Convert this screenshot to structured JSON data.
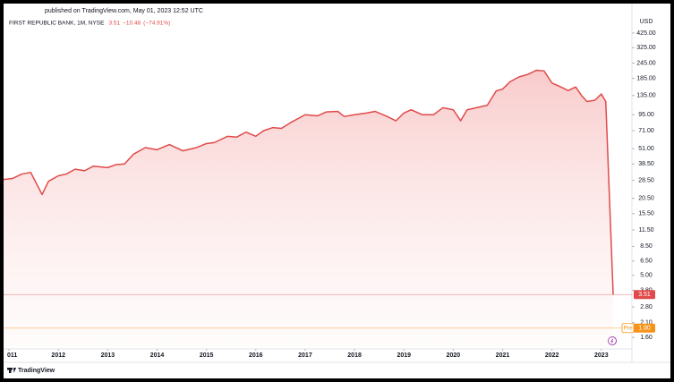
{
  "chart_data": {
    "type": "line",
    "header": "published on TradingView.com, May 01, 2023 12:52 UTC",
    "currency": "USD",
    "legend": {
      "change": "−10.48",
      "change_pct": "(−74.91%)"
    },
    "last_label": "3.51",
    "pre": {
      "name": "Pre",
      "value": 1.9,
      "label": "1.90",
      "color": "#f7931a"
    },
    "brand": "TradingView",
    "ylog": true,
    "grid": false,
    "series": [
      {
        "name": "FIRST REPUBLIC BANK, 1M, NYSE",
        "color": "#e04a4a",
        "values": [
          29,
          29.5,
          32,
          33,
          24,
          22,
          28,
          31,
          32,
          35,
          34,
          37,
          36,
          38,
          38.5,
          46,
          52,
          50,
          55,
          51,
          49,
          52,
          56,
          57,
          64,
          63,
          69,
          64,
          71,
          75,
          74,
          82,
          95,
          93,
          100,
          101,
          92,
          95,
          98,
          101,
          92,
          85,
          98,
          104,
          95,
          95,
          108,
          104,
          85,
          104,
          109,
          113,
          147,
          152,
          174,
          190,
          199,
          215,
          212,
          170,
          160,
          148,
          158,
          135,
          121,
          124,
          139,
          121,
          3.51
        ]
      }
    ],
    "x": [
      2010.89,
      2011.07,
      2011.26,
      2011.44,
      2011.62,
      2011.67,
      2011.8,
      2012.0,
      2012.16,
      2012.34,
      2012.53,
      2012.71,
      2013.0,
      2013.16,
      2013.34,
      2013.52,
      2013.76,
      2014.0,
      2014.25,
      2014.43,
      2014.52,
      2014.8,
      2015.0,
      2015.16,
      2015.43,
      2015.61,
      2015.8,
      2016.0,
      2016.16,
      2016.34,
      2016.52,
      2016.7,
      2017.0,
      2017.25,
      2017.43,
      2017.66,
      2017.79,
      2018.0,
      2018.24,
      2018.42,
      2018.66,
      2018.84,
      2019.0,
      2019.15,
      2019.37,
      2019.6,
      2019.79,
      2020.0,
      2020.15,
      2020.28,
      2020.51,
      2020.69,
      2020.87,
      2021.0,
      2021.15,
      2021.33,
      2021.51,
      2021.69,
      2021.84,
      2022.0,
      2022.15,
      2022.33,
      2022.48,
      2022.6,
      2022.71,
      2022.87,
      2023.0,
      2023.09,
      2023.24
    ],
    "xlim": [
      2010.89,
      2023.62
    ],
    "xticks": [
      {
        "value": 2011,
        "label": "011"
      },
      2012,
      2013,
      2014,
      2015,
      2016,
      2017,
      2018,
      2019,
      2020,
      2021,
      2022,
      2023
    ],
    "ylim": [
      1.34,
      476
    ],
    "yticks": [
      {
        "value": 425,
        "label": "425.00"
      },
      {
        "value": 325,
        "label": "325.00"
      },
      {
        "value": 245,
        "label": "245.00"
      },
      {
        "value": 185,
        "label": "185.00"
      },
      {
        "value": 135,
        "label": "135.00"
      },
      {
        "value": 95,
        "label": "95.00"
      },
      {
        "value": 71,
        "label": "71.00"
      },
      {
        "value": 51,
        "label": "51.00"
      },
      {
        "value": 38.5,
        "label": "38.50"
      },
      {
        "value": 28.5,
        "label": "28.50"
      },
      {
        "value": 20.5,
        "label": "20.50"
      },
      {
        "value": 15.5,
        "label": "15.50"
      },
      {
        "value": 11.5,
        "label": "11.50"
      },
      {
        "value": 8.5,
        "label": "8.50"
      },
      {
        "value": 6.5,
        "label": "6.50"
      },
      {
        "value": 5,
        "label": "5.00"
      },
      {
        "value": 3.8,
        "label": "3.80"
      },
      {
        "value": 2.8,
        "label": "2.80"
      },
      {
        "value": 2.1,
        "label": "2.10"
      },
      {
        "value": 1.6,
        "label": "1.60"
      }
    ]
  }
}
